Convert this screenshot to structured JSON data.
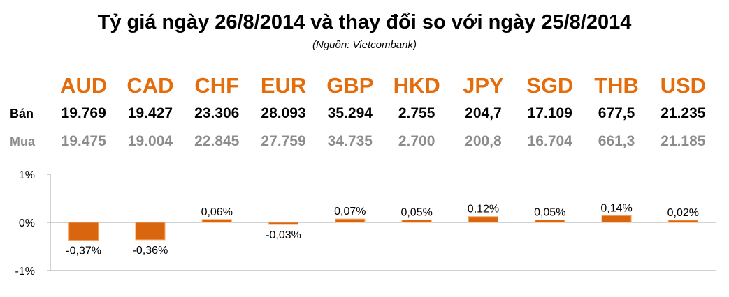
{
  "header": {
    "title": "Tỷ giá ngày 26/8/2014 và thay đổi so với ngày 25/8/2014",
    "source": "(Nguồn: Vietcombank)"
  },
  "table": {
    "sell_label": "Bán",
    "buy_label": "Mua",
    "currencies": [
      "AUD",
      "CAD",
      "CHF",
      "EUR",
      "GBP",
      "HKD",
      "JPY",
      "SGD",
      "THB",
      "USD"
    ],
    "sell": [
      "19.769",
      "19.427",
      "23.306",
      "28.093",
      "35.294",
      "2.755",
      "204,7",
      "17.109",
      "677,5",
      "21.235"
    ],
    "buy": [
      "19.475",
      "19.004",
      "22.845",
      "27.759",
      "34.735",
      "2.700",
      "200,8",
      "16.704",
      "661,3",
      "21.185"
    ]
  },
  "colors": {
    "accent": "#e46c0a",
    "bar_fill": "#d9660e",
    "bar_edge": "#f4a460",
    "muted_text": "#8c8c8c",
    "axis": "#a6a6a6"
  },
  "chart_data": {
    "type": "bar",
    "categories": [
      "AUD",
      "CAD",
      "CHF",
      "EUR",
      "GBP",
      "HKD",
      "JPY",
      "SGD",
      "THB",
      "USD"
    ],
    "values": [
      -0.37,
      -0.36,
      0.06,
      -0.03,
      0.07,
      0.05,
      0.12,
      0.05,
      0.14,
      0.02
    ],
    "data_labels": [
      "-0,37%",
      "-0,36%",
      "0,06%",
      "-0,03%",
      "0,07%",
      "0,05%",
      "0,12%",
      "0,05%",
      "0,14%",
      "0,02%"
    ],
    "ylim": [
      -1,
      1
    ],
    "yticks": [
      "1%",
      "0%",
      "-1%"
    ],
    "grid": false,
    "legend": "none"
  }
}
